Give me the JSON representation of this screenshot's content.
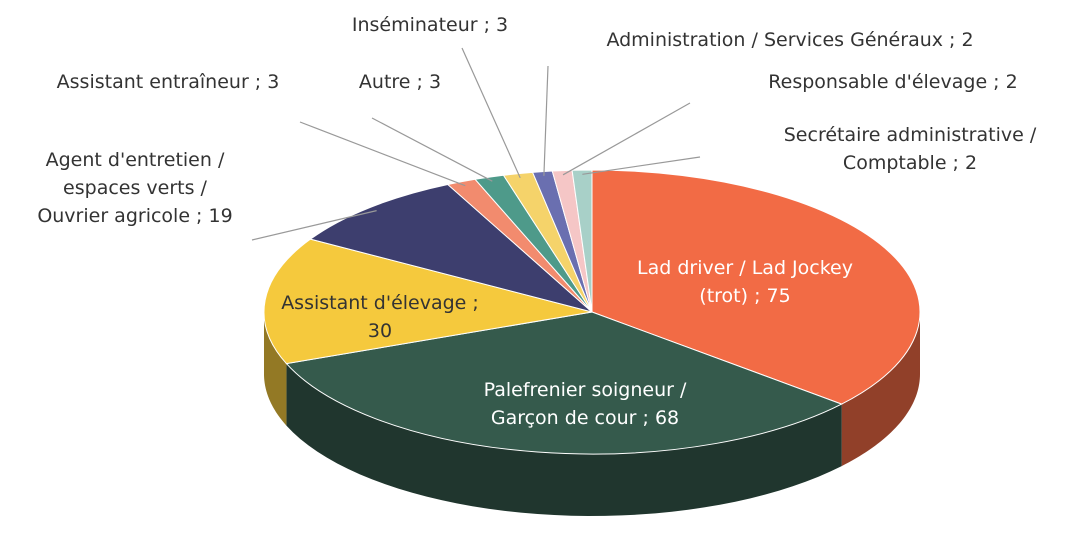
{
  "chart_data": {
    "type": "pie",
    "values": [
      75,
      68,
      30,
      19,
      3,
      3,
      3,
      2,
      2,
      2
    ],
    "value_labels": [
      "Lad driver / Lad Jockey\n(trot) ; 75",
      "Palefrenier soigneur /\nGarçon de cour ; 68",
      "Assistant d'élevage ;\n30",
      "Agent d'entretien /\nespaces verts /\nOuvrier agricole ; 19",
      "Assistant entraîneur ; 3",
      "Autre ; 3",
      "Inséminateur ; 3",
      "Administration / Services Généraux ; 2",
      "Responsable d'élevage ; 2",
      "Secrétaire administrative /\nComptable ; 2"
    ],
    "colors": [
      "#f26b45",
      "#355a4c",
      "#f5c93d",
      "#3d3e6e",
      "#f28b6e",
      "#4e9a8a",
      "#f5d36a",
      "#6a6fb0",
      "#f5c6c6",
      "#a8d0c8"
    ]
  }
}
